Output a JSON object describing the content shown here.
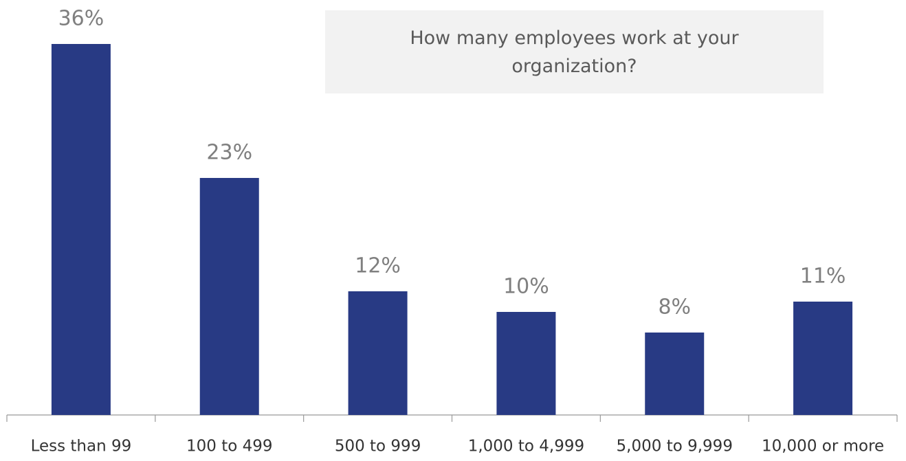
{
  "chart_data": {
    "type": "bar",
    "title": "How many employees work at your organization?",
    "categories": [
      "Less than 99",
      "100 to 499",
      "500 to 999",
      "1,000 to 4,999",
      "5,000 to 9,999",
      "10,000 or more"
    ],
    "values": [
      36,
      23,
      12,
      10,
      8,
      11
    ],
    "value_labels": [
      "36%",
      "23%",
      "12%",
      "10%",
      "8%",
      "11%"
    ],
    "color": "#283a84"
  }
}
